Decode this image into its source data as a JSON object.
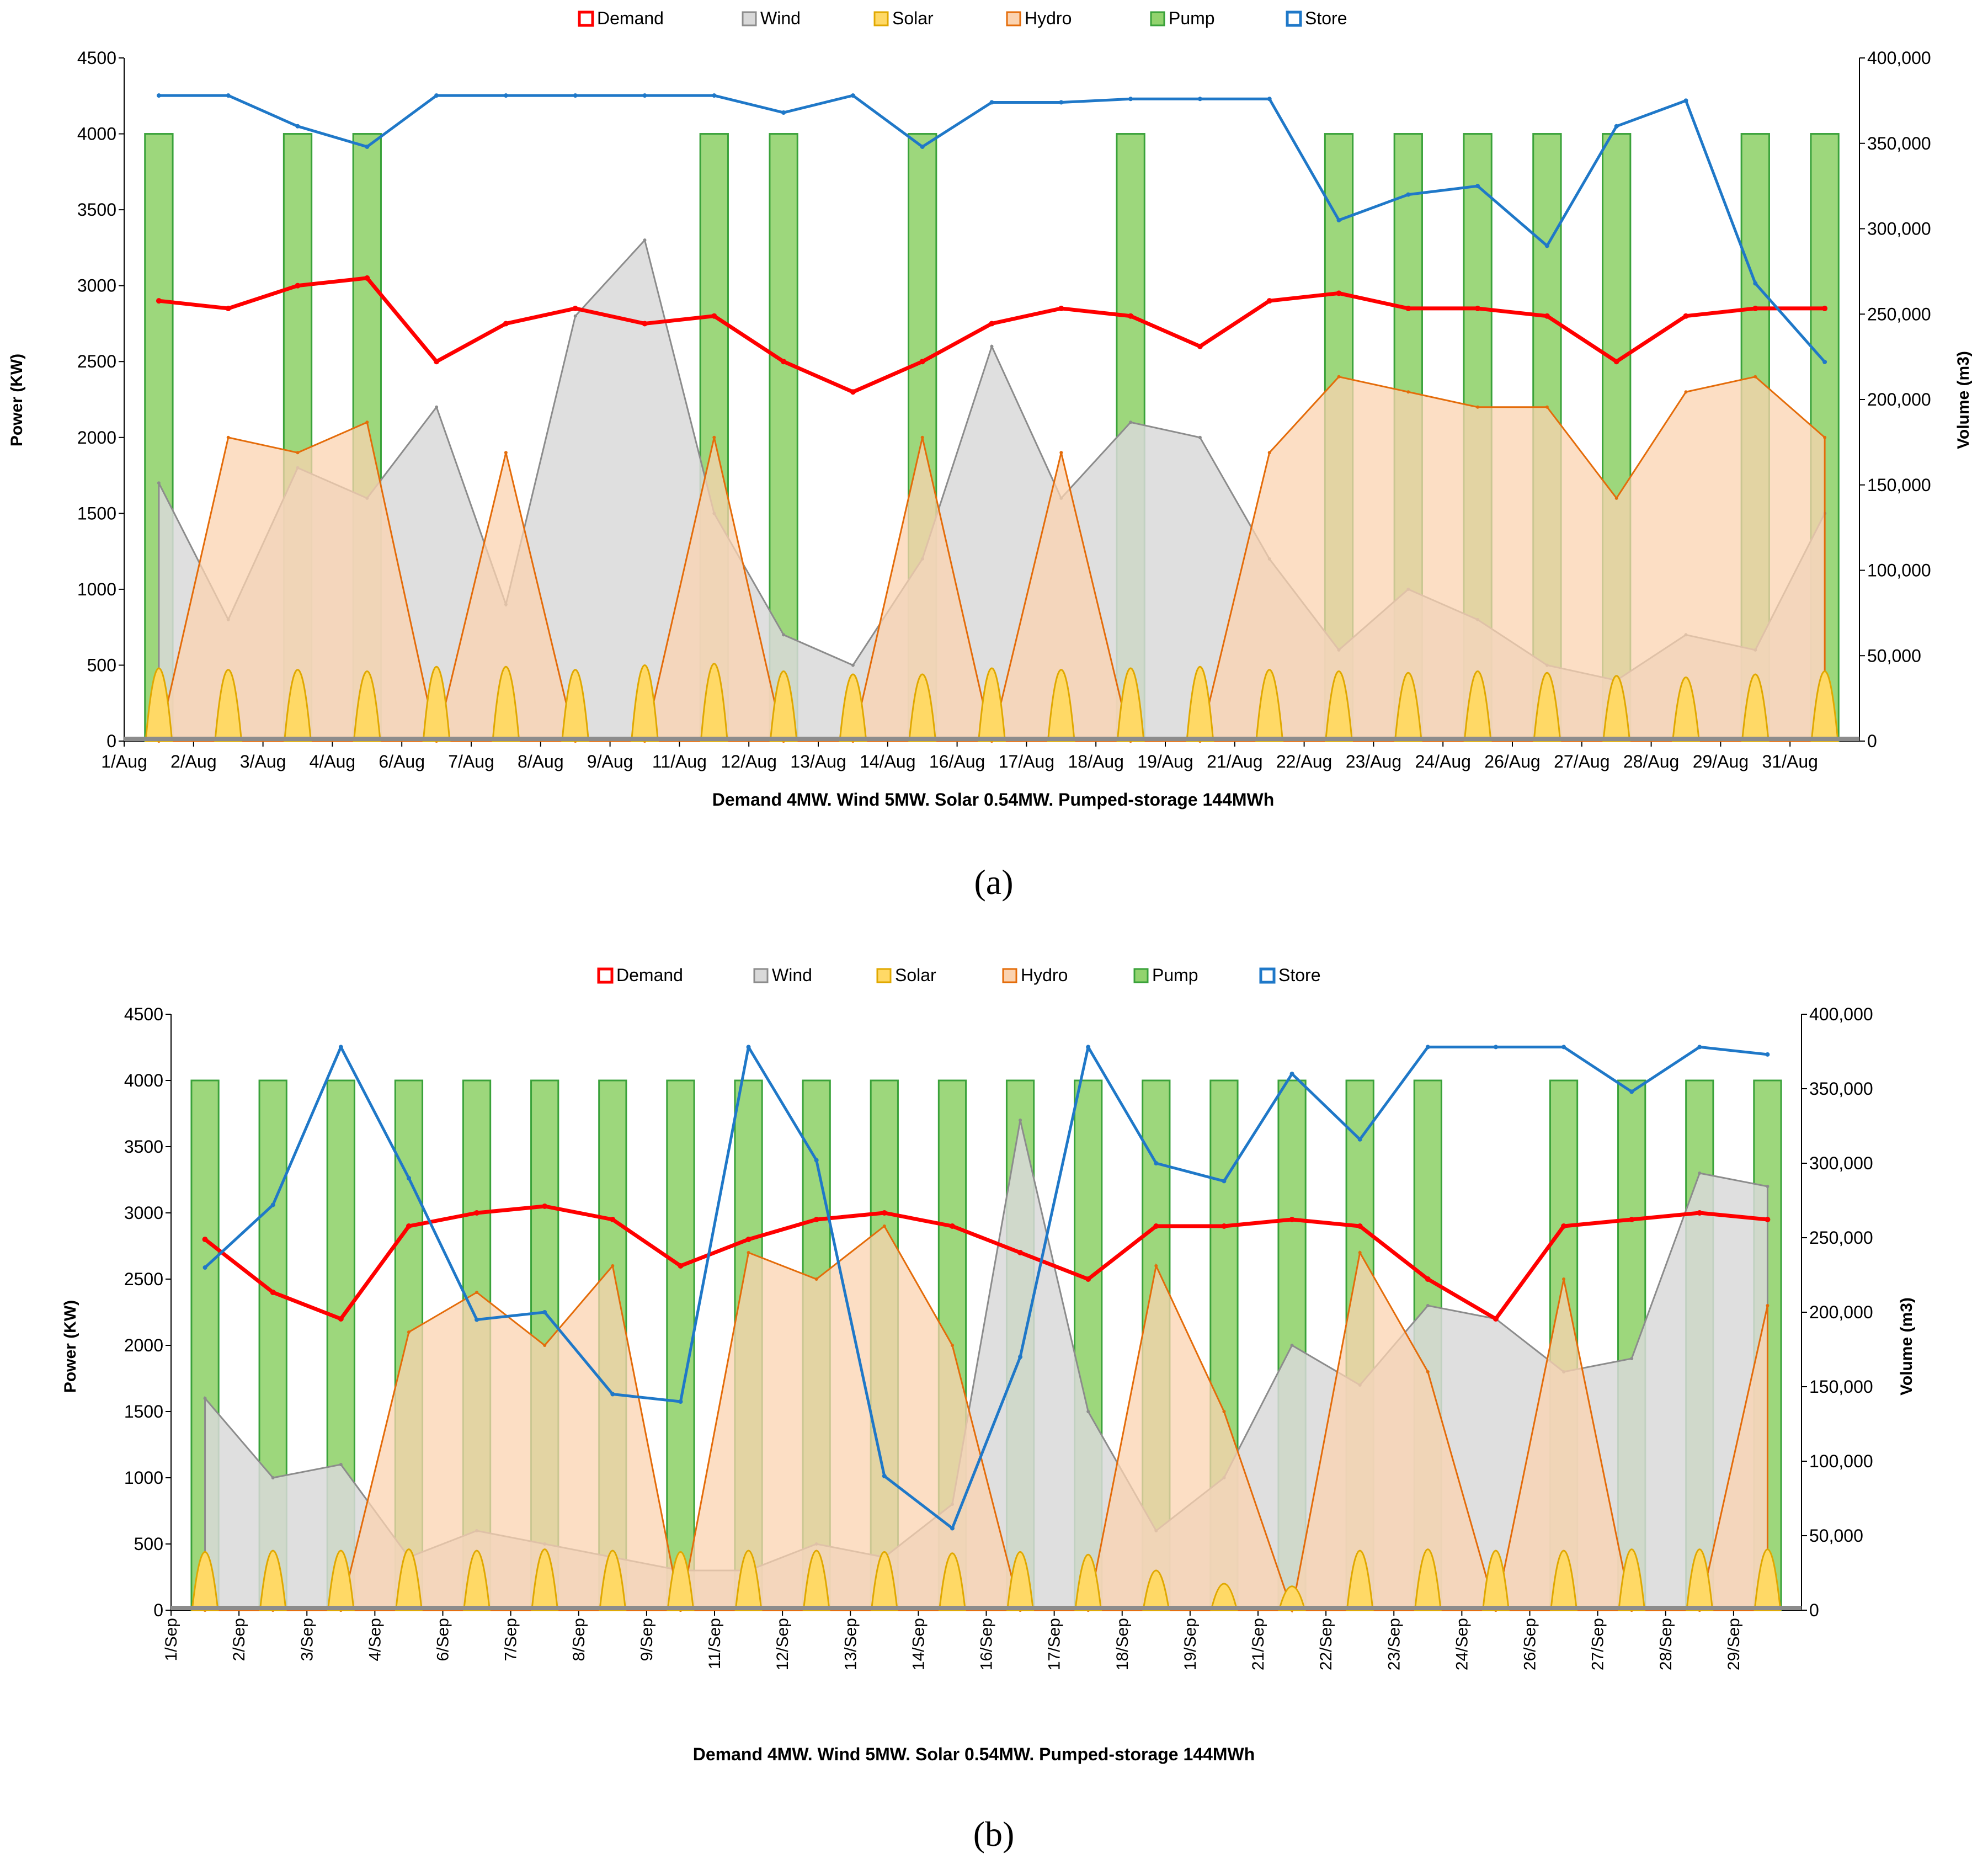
{
  "chart_data": [
    {
      "type": "area",
      "panel": "(a)",
      "title": "Demand 4MW. Wind 5MW. Solar 0.54MW. Pumped-storage 144MWh",
      "xlabel": "",
      "ylabel": "Power (KW)",
      "y2label": "Volume (m3)",
      "ylim": [
        0,
        4500
      ],
      "y2lim": [
        0,
        400000
      ],
      "yticks": [
        "0",
        "500",
        "1000",
        "1500",
        "2000",
        "2500",
        "3000",
        "3500",
        "4000",
        "4500"
      ],
      "y2ticks": [
        "0",
        "50,000",
        "100,000",
        "150,000",
        "200,000",
        "250,000",
        "300,000",
        "350,000",
        "400,000"
      ],
      "categories": [
        "1/Aug",
        "2/Aug",
        "3/Aug",
        "4/Aug",
        "6/Aug",
        "7/Aug",
        "8/Aug",
        "9/Aug",
        "11/Aug",
        "12/Aug",
        "13/Aug",
        "14/Aug",
        "16/Aug",
        "17/Aug",
        "18/Aug",
        "19/Aug",
        "21/Aug",
        "22/Aug",
        "23/Aug",
        "24/Aug",
        "26/Aug",
        "27/Aug",
        "28/Aug",
        "29/Aug",
        "31/Aug"
      ],
      "legend": [
        "Demand",
        "Wind",
        "Solar",
        "Hydro",
        "Pump",
        "Store"
      ],
      "legend_position": "top",
      "series": [
        {
          "name": "Demand",
          "values": [
            2900,
            2850,
            3000,
            3050,
            2500,
            2750,
            2850,
            2750,
            2800,
            2500,
            2300,
            2500,
            2750,
            2850,
            2800,
            2600,
            2900,
            2950,
            2850,
            2850,
            2800,
            2500,
            2800,
            2850,
            2850
          ]
        },
        {
          "name": "Wind",
          "values": [
            1700,
            800,
            1800,
            1600,
            2200,
            900,
            2800,
            3300,
            1500,
            700,
            500,
            1200,
            2600,
            1600,
            2100,
            2000,
            1200,
            600,
            1000,
            800,
            500,
            400,
            700,
            600,
            1500
          ]
        },
        {
          "name": "Solar",
          "values": [
            480,
            470,
            470,
            460,
            490,
            490,
            470,
            500,
            510,
            460,
            440,
            440,
            480,
            470,
            480,
            490,
            470,
            460,
            450,
            460,
            450,
            430,
            420,
            440,
            460
          ]
        },
        {
          "name": "Hydro",
          "values": [
            0,
            2000,
            1900,
            2100,
            0,
            1900,
            0,
            0,
            2000,
            0,
            0,
            2000,
            0,
            1900,
            0,
            0,
            1900,
            2400,
            2300,
            2200,
            2200,
            1600,
            2300,
            2400,
            2000
          ]
        },
        {
          "name": "Pump",
          "values": [
            4000,
            0,
            4000,
            4000,
            0,
            0,
            0,
            0,
            4000,
            4000,
            0,
            4000,
            0,
            0,
            4000,
            0,
            0,
            4000,
            4000,
            4000,
            4000,
            4000,
            0,
            4000,
            4000
          ]
        },
        {
          "name": "Store",
          "values": [
            378000,
            378000,
            360000,
            348000,
            378000,
            378000,
            378000,
            378000,
            378000,
            368000,
            378000,
            348000,
            374000,
            374000,
            376000,
            376000,
            376000,
            305000,
            320000,
            325000,
            290000,
            360000,
            375000,
            268000,
            222000
          ]
        }
      ]
    },
    {
      "type": "area",
      "panel": "(b)",
      "title": "Demand 4MW. Wind 5MW. Solar 0.54MW. Pumped-storage 144MWh",
      "xlabel": "",
      "ylabel": "Power (KW)",
      "y2label": "Volume (m3)",
      "ylim": [
        0,
        4500
      ],
      "y2lim": [
        0,
        400000
      ],
      "yticks": [
        "0",
        "500",
        "1000",
        "1500",
        "2000",
        "2500",
        "3000",
        "3500",
        "4000",
        "4500"
      ],
      "y2ticks": [
        "0",
        "50,000",
        "100,000",
        "150,000",
        "200,000",
        "250,000",
        "300,000",
        "350,000",
        "400,000"
      ],
      "categories": [
        "1/Sep",
        "2/Sep",
        "3/Sep",
        "4/Sep",
        "6/Sep",
        "7/Sep",
        "8/Sep",
        "9/Sep",
        "11/Sep",
        "12/Sep",
        "13/Sep",
        "14/Sep",
        "16/Sep",
        "17/Sep",
        "18/Sep",
        "19/Sep",
        "21/Sep",
        "22/Sep",
        "23/Sep",
        "24/Sep",
        "26/Sep",
        "27/Sep",
        "28/Sep",
        "29/Sep"
      ],
      "legend": [
        "Demand",
        "Wind",
        "Solar",
        "Hydro",
        "Pump",
        "Store"
      ],
      "legend_position": "top",
      "series": [
        {
          "name": "Demand",
          "values": [
            2800,
            2400,
            2200,
            2900,
            3000,
            3050,
            2950,
            2600,
            2800,
            2950,
            3000,
            2900,
            2700,
            2500,
            2900,
            2900,
            2950,
            2900,
            2500,
            2200,
            2900,
            2950,
            3000,
            2950
          ]
        },
        {
          "name": "Wind",
          "values": [
            1600,
            1000,
            1100,
            400,
            600,
            500,
            400,
            300,
            300,
            500,
            400,
            800,
            3700,
            1500,
            600,
            1000,
            2000,
            1700,
            2300,
            2200,
            1800,
            1900,
            3300,
            3200
          ]
        },
        {
          "name": "Solar",
          "values": [
            440,
            450,
            450,
            460,
            450,
            460,
            450,
            440,
            450,
            450,
            440,
            430,
            440,
            420,
            300,
            200,
            180,
            450,
            460,
            450,
            450,
            460,
            460,
            460
          ]
        },
        {
          "name": "Hydro",
          "values": [
            0,
            0,
            0,
            2100,
            2400,
            2000,
            2600,
            0,
            2700,
            2500,
            2900,
            2000,
            0,
            0,
            2600,
            1500,
            0,
            2700,
            1800,
            0,
            2500,
            0,
            0,
            2300
          ]
        },
        {
          "name": "Pump",
          "values": [
            4000,
            4000,
            4000,
            4000,
            4000,
            4000,
            4000,
            4000,
            4000,
            4000,
            4000,
            4000,
            4000,
            4000,
            4000,
            4000,
            4000,
            4000,
            4000,
            0,
            4000,
            4000,
            4000,
            4000
          ]
        },
        {
          "name": "Store",
          "values": [
            230000,
            272000,
            378000,
            290000,
            195000,
            200000,
            145000,
            140000,
            378000,
            302000,
            90000,
            55000,
            170000,
            378000,
            300000,
            288000,
            360000,
            316000,
            378000,
            378000,
            378000,
            348000,
            378000,
            373000
          ]
        }
      ]
    }
  ]
}
